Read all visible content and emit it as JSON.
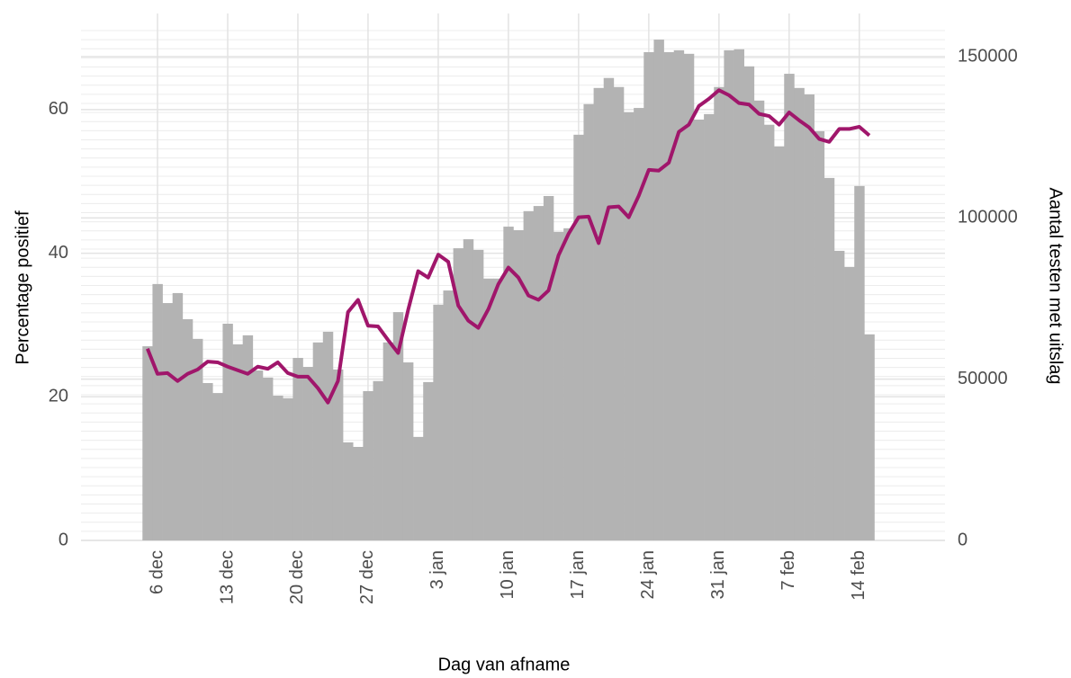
{
  "chart_data": {
    "type": "combo",
    "x_label": "Dag van afname",
    "y_label": "Percentage positief",
    "y2_label": "Aantal testen met uitslag",
    "categories": [
      null,
      "6 dec",
      null,
      null,
      null,
      null,
      null,
      null,
      "13 dec",
      null,
      null,
      null,
      null,
      null,
      null,
      "20 dec",
      null,
      null,
      null,
      null,
      null,
      null,
      "27 dec",
      null,
      null,
      null,
      null,
      null,
      null,
      "3 jan",
      null,
      null,
      null,
      null,
      null,
      null,
      "10 jan",
      null,
      null,
      null,
      null,
      null,
      null,
      "17 jan",
      null,
      null,
      null,
      null,
      null,
      null,
      "24 jan",
      null,
      null,
      null,
      null,
      null,
      null,
      "31 jan",
      null,
      null,
      null,
      null,
      null,
      null,
      "7 feb",
      null,
      null,
      null,
      null,
      null,
      null,
      "14 feb",
      null
    ],
    "series": [
      {
        "type": "bar",
        "axis": "y2",
        "color": "#b3b3b3",
        "values": [
          60200,
          79500,
          73600,
          76700,
          68600,
          62500,
          48800,
          45700,
          67200,
          60800,
          63600,
          52700,
          50500,
          44900,
          44100,
          56600,
          53800,
          61400,
          64700,
          53000,
          30400,
          29000,
          46300,
          49400,
          61400,
          70800,
          55200,
          32100,
          49100,
          73100,
          77500,
          90600,
          93400,
          90100,
          81200,
          81200,
          97300,
          96200,
          102100,
          103700,
          106800,
          95700,
          96800,
          125800,
          135300,
          140300,
          143400,
          140600,
          132800,
          134100,
          151400,
          155300,
          151400,
          152000,
          150900,
          130500,
          132200,
          140600,
          152000,
          152300,
          147000,
          136400,
          128900,
          122200,
          144700,
          140300,
          138300,
          126900,
          112400,
          89800,
          84800,
          109900,
          63900
        ]
      },
      {
        "type": "line",
        "color": "#a0166b",
        "values": [
          26.7,
          23.2,
          23.3,
          22.2,
          23.2,
          23.8,
          24.9,
          24.8,
          24.2,
          23.7,
          23.2,
          24.2,
          23.9,
          24.8,
          23.3,
          22.8,
          22.8,
          21.2,
          19.2,
          22.2,
          31.8,
          33.5,
          29.9,
          29.8,
          27.9,
          26.1,
          32.1,
          37.5,
          36.6,
          39.8,
          38.8,
          32.7,
          30.6,
          29.6,
          32.2,
          35.7,
          38.0,
          36.6,
          34.1,
          33.5,
          34.8,
          39.7,
          42.7,
          45.0,
          45.1,
          41.4,
          46.4,
          46.5,
          45.0,
          48.0,
          51.6,
          51.5,
          52.6,
          56.9,
          57.9,
          60.5,
          61.5,
          62.7,
          62.0,
          60.9,
          60.7,
          59.4,
          59.1,
          57.9,
          59.6,
          58.5,
          57.5,
          55.9,
          55.5,
          57.3,
          57.3,
          57.6,
          56.4
        ]
      }
    ],
    "ylim": [
      0,
      71
    ],
    "yticks": [
      0,
      20,
      40,
      60
    ],
    "y2lim": [
      0,
      158100
    ],
    "y2ticks": [
      0,
      50000,
      100000,
      150000
    ],
    "grid": true
  }
}
